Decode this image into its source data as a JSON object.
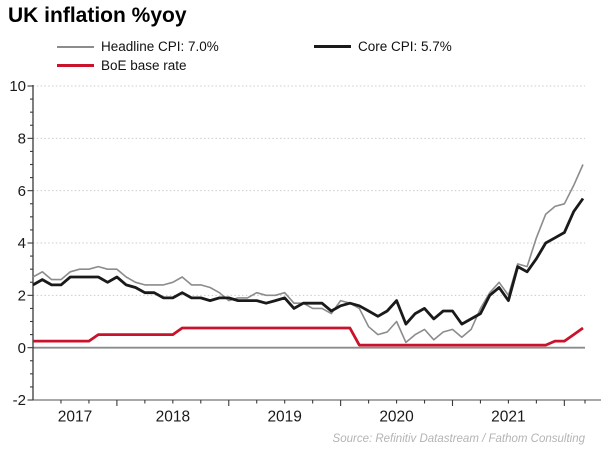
{
  "title": "UK inflation %yoy",
  "legend": [
    {
      "label": "Headline CPI: 7.0%",
      "color": "#8c8c8c",
      "swatch_height": 2
    },
    {
      "label": "Core CPI: 5.7%",
      "color": "#1a1a1a",
      "swatch_height": 3
    },
    {
      "label": "BoE base rate",
      "color": "#c9122c",
      "swatch_height": 3
    }
  ],
  "source": "Source: Refinitiv Datastream / Fathom Consulting",
  "chart_data": {
    "type": "line",
    "title": "UK inflation %yoy",
    "x_unit": "month",
    "x_start": "2017-04",
    "x_end": "2022-03",
    "x_tick_labels": [
      "2017",
      "2018",
      "2019",
      "2020",
      "2021"
    ],
    "ylim": [
      -2,
      10
    ],
    "y_major_tick_step": 2,
    "y_minor_tick_step": 0.5,
    "grid_values": [
      2,
      4,
      6,
      8,
      10
    ],
    "legend_position": "top",
    "grid": "dotted-horizontal",
    "colors": {
      "grid": "#cccccc",
      "zero_line": "#8c8c8c",
      "x_axis": "#8c8c8c",
      "y_axis": "#3a3a3a",
      "tick": "#3a3a3a",
      "label": "#1a1a1a"
    },
    "series": [
      {
        "name": "Headline CPI",
        "color": "#8c8c8c",
        "stroke_width": 1.6,
        "values": [
          2.7,
          2.9,
          2.6,
          2.6,
          2.9,
          3.0,
          3.0,
          3.1,
          3.0,
          3.0,
          2.7,
          2.5,
          2.4,
          2.4,
          2.4,
          2.5,
          2.7,
          2.4,
          2.4,
          2.3,
          2.1,
          1.8,
          1.9,
          1.9,
          2.1,
          2.0,
          2.0,
          2.1,
          1.7,
          1.7,
          1.5,
          1.5,
          1.3,
          1.8,
          1.7,
          1.5,
          0.8,
          0.5,
          0.6,
          1.0,
          0.2,
          0.5,
          0.7,
          0.3,
          0.6,
          0.7,
          0.4,
          0.7,
          1.5,
          2.1,
          2.5,
          2.0,
          3.2,
          3.1,
          4.2,
          5.1,
          5.4,
          5.5,
          6.2,
          7.0
        ]
      },
      {
        "name": "Core CPI",
        "color": "#1a1a1a",
        "stroke_width": 2.8,
        "values": [
          2.4,
          2.6,
          2.4,
          2.4,
          2.7,
          2.7,
          2.7,
          2.7,
          2.5,
          2.7,
          2.4,
          2.3,
          2.1,
          2.1,
          1.9,
          1.9,
          2.1,
          1.9,
          1.9,
          1.8,
          1.9,
          1.9,
          1.8,
          1.8,
          1.8,
          1.7,
          1.8,
          1.9,
          1.5,
          1.7,
          1.7,
          1.7,
          1.4,
          1.6,
          1.7,
          1.6,
          1.4,
          1.2,
          1.4,
          1.8,
          0.9,
          1.3,
          1.5,
          1.1,
          1.4,
          1.4,
          0.9,
          1.1,
          1.3,
          2.0,
          2.3,
          1.8,
          3.1,
          2.9,
          3.4,
          4.0,
          4.2,
          4.4,
          5.2,
          5.7
        ]
      },
      {
        "name": "BoE base rate",
        "color": "#c9122c",
        "stroke_width": 2.8,
        "values": [
          0.25,
          0.25,
          0.25,
          0.25,
          0.25,
          0.25,
          0.25,
          0.5,
          0.5,
          0.5,
          0.5,
          0.5,
          0.5,
          0.5,
          0.5,
          0.5,
          0.75,
          0.75,
          0.75,
          0.75,
          0.75,
          0.75,
          0.75,
          0.75,
          0.75,
          0.75,
          0.75,
          0.75,
          0.75,
          0.75,
          0.75,
          0.75,
          0.75,
          0.75,
          0.75,
          0.1,
          0.1,
          0.1,
          0.1,
          0.1,
          0.1,
          0.1,
          0.1,
          0.1,
          0.1,
          0.1,
          0.1,
          0.1,
          0.1,
          0.1,
          0.1,
          0.1,
          0.1,
          0.1,
          0.1,
          0.1,
          0.25,
          0.25,
          0.5,
          0.75
        ]
      }
    ]
  }
}
